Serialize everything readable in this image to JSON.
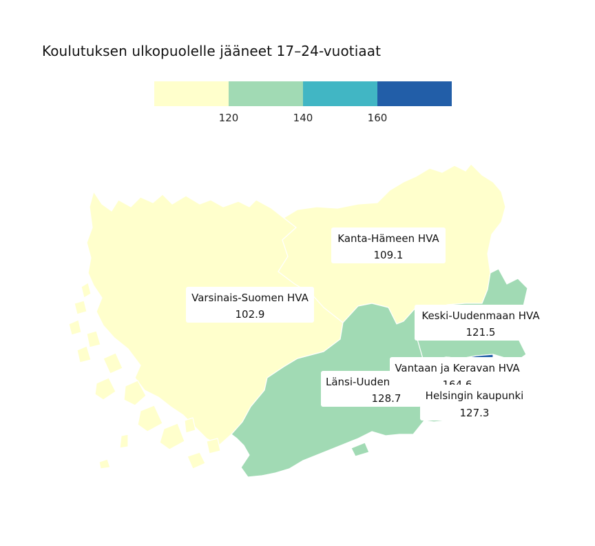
{
  "title": "Koulutuksen ulkopuolelle jääneet 17–24-vuotiaat",
  "legend": {
    "colors": [
      "#ffffcc",
      "#a1dab4",
      "#41b6c4",
      "#225ea8"
    ],
    "ticks": [
      "120",
      "140",
      "160"
    ],
    "breaks": [
      120,
      140,
      160
    ]
  },
  "chart_data": {
    "type": "choropleth",
    "title": "Koulutuksen ulkopuolelle jääneet 17–24-vuotiaat",
    "regions": [
      {
        "name": "Varsinais-Suomen HVA",
        "value": "102.9"
      },
      {
        "name": "Kanta-Hämeen HVA",
        "value": "109.1"
      },
      {
        "name": "Keski-Uudenmaan HVA",
        "value": "121.5"
      },
      {
        "name": "Länsi-Uuden",
        "value": "128.7"
      },
      {
        "name": "Vantaan ja Keravan HVA",
        "value": "164.6"
      },
      {
        "name": "Helsingin kaupunki",
        "value": "127.3"
      }
    ]
  }
}
